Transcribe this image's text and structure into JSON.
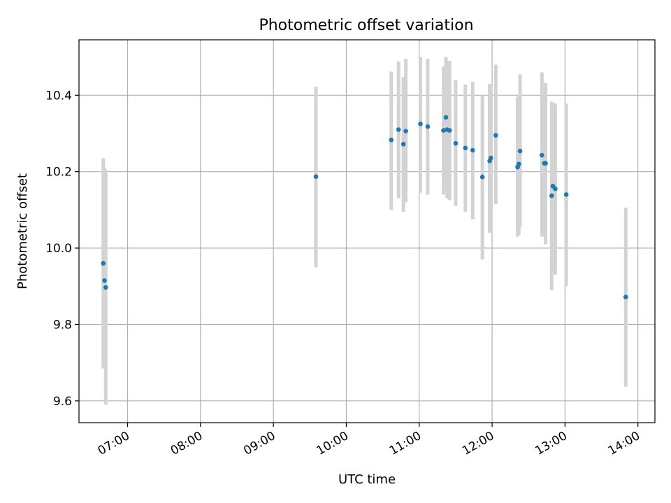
{
  "chart_data": {
    "type": "scatter",
    "title": "Photometric offset variation",
    "xlabel": "UTC time",
    "ylabel": "Photometric offset",
    "x_ticks": [
      "07:00",
      "08:00",
      "09:00",
      "10:00",
      "11:00",
      "12:00",
      "13:00",
      "14:00"
    ],
    "y_ticks": [
      "9.6",
      "9.8",
      "10.0",
      "10.2",
      "10.4"
    ],
    "xlim": [
      "06:20",
      "14:14"
    ],
    "ylim": [
      9.543,
      10.545
    ],
    "grid": true,
    "colors": {
      "point": "#1f77b4",
      "errorbar": "#d3d3d3",
      "grid": "#b0b0b0"
    },
    "points": [
      {
        "t": "06:40",
        "y": 9.96,
        "ylo": 9.685,
        "yhi": 10.235
      },
      {
        "t": "06:41",
        "y": 9.915,
        "ylo": 9.7,
        "yhi": 10.21
      },
      {
        "t": "06:42",
        "y": 9.897,
        "ylo": 9.59,
        "yhi": 10.205
      },
      {
        "t": "09:35",
        "y": 10.187,
        "ylo": 9.95,
        "yhi": 10.422
      },
      {
        "t": "10:37",
        "y": 10.283,
        "ylo": 10.1,
        "yhi": 10.462
      },
      {
        "t": "10:43",
        "y": 10.31,
        "ylo": 10.13,
        "yhi": 10.488
      },
      {
        "t": "10:47",
        "y": 10.272,
        "ylo": 10.095,
        "yhi": 10.448
      },
      {
        "t": "10:49",
        "y": 10.306,
        "ylo": 10.12,
        "yhi": 10.495
      },
      {
        "t": "11:01",
        "y": 10.325,
        "ylo": 10.145,
        "yhi": 10.5
      },
      {
        "t": "11:07",
        "y": 10.318,
        "ylo": 10.14,
        "yhi": 10.495
      },
      {
        "t": "11:20",
        "y": 10.308,
        "ylo": 10.14,
        "yhi": 10.475
      },
      {
        "t": "11:22",
        "y": 10.342,
        "ylo": 10.16,
        "yhi": 10.5
      },
      {
        "t": "11:23",
        "y": 10.31,
        "ylo": 10.13,
        "yhi": 10.49
      },
      {
        "t": "11:25",
        "y": 10.308,
        "ylo": 10.125,
        "yhi": 10.49
      },
      {
        "t": "11:30",
        "y": 10.274,
        "ylo": 10.11,
        "yhi": 10.44
      },
      {
        "t": "11:38",
        "y": 10.262,
        "ylo": 10.095,
        "yhi": 10.428
      },
      {
        "t": "11:44",
        "y": 10.256,
        "ylo": 10.075,
        "yhi": 10.435
      },
      {
        "t": "11:52",
        "y": 10.186,
        "ylo": 9.97,
        "yhi": 10.4
      },
      {
        "t": "11:58",
        "y": 10.228,
        "ylo": 10.04,
        "yhi": 10.43
      },
      {
        "t": "11:59",
        "y": 10.236,
        "ylo": 10.04,
        "yhi": 10.43
      },
      {
        "t": "12:03",
        "y": 10.295,
        "ylo": 10.115,
        "yhi": 10.48
      },
      {
        "t": "12:21",
        "y": 10.212,
        "ylo": 10.03,
        "yhi": 10.395
      },
      {
        "t": "12:22",
        "y": 10.22,
        "ylo": 10.035,
        "yhi": 10.4
      },
      {
        "t": "12:23",
        "y": 10.254,
        "ylo": 10.055,
        "yhi": 10.455
      },
      {
        "t": "12:41",
        "y": 10.243,
        "ylo": 10.03,
        "yhi": 10.46
      },
      {
        "t": "12:43",
        "y": 10.222,
        "ylo": 10.03,
        "yhi": 10.41
      },
      {
        "t": "12:44",
        "y": 10.222,
        "ylo": 10.01,
        "yhi": 10.432
      },
      {
        "t": "12:49",
        "y": 10.137,
        "ylo": 9.89,
        "yhi": 10.383
      },
      {
        "t": "12:50",
        "y": 10.162,
        "ylo": 9.94,
        "yhi": 10.38
      },
      {
        "t": "12:52",
        "y": 10.155,
        "ylo": 9.93,
        "yhi": 10.378
      },
      {
        "t": "13:01",
        "y": 10.14,
        "ylo": 9.9,
        "yhi": 10.378
      },
      {
        "t": "13:50",
        "y": 9.872,
        "ylo": 9.637,
        "yhi": 10.105
      }
    ]
  }
}
